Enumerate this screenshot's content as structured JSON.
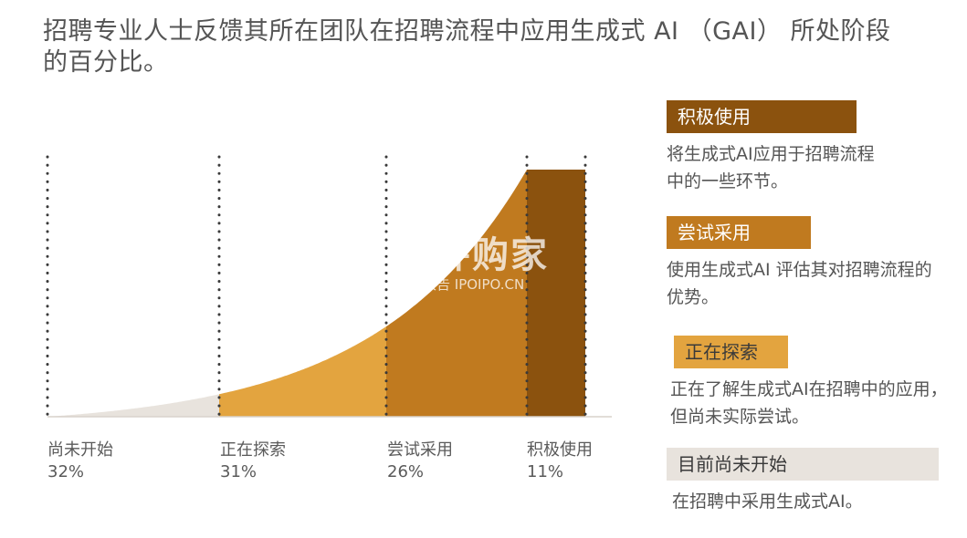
{
  "title": "招聘专业人士反馈其所在团队在招聘流程中应用生成式 AI （GAI） 所处阶段的百分比。",
  "chart_data": {
    "type": "area",
    "categories": [
      "尚未开始",
      "正在探索",
      "尝试采用",
      "积极使用"
    ],
    "values": [
      32,
      31,
      26,
      11
    ],
    "value_labels": [
      "32%",
      "31%",
      "26%",
      "11%"
    ],
    "colors": [
      "#e8e3dd",
      "#e3a43f",
      "#c07a1f",
      "#8b520e"
    ]
  },
  "legend": [
    {
      "label": "积极使用",
      "desc": "将生成式AI应用于招聘流程中的一些环节。",
      "color": "#8b520e",
      "text_color": "#ffffff"
    },
    {
      "label": "尝试采用",
      "desc": "使用生成式AI 评估其对招聘流程的优势。",
      "color": "#c07a1f",
      "text_color": "#ffffff"
    },
    {
      "label": "正在探索",
      "desc": "正在了解生成式AI在招聘中的应用，但尚未实际尝试。",
      "color": "#e3a43f",
      "text_color": "#3a3a3a"
    },
    {
      "label": "目前尚未开始",
      "desc": "在招聘中采用生成式AI。",
      "color": "#e8e3dd",
      "text_color": "#3a3a3a"
    }
  ],
  "watermark": {
    "main": "并购家",
    "sub": "行业报告 IPOIPO.CN"
  }
}
